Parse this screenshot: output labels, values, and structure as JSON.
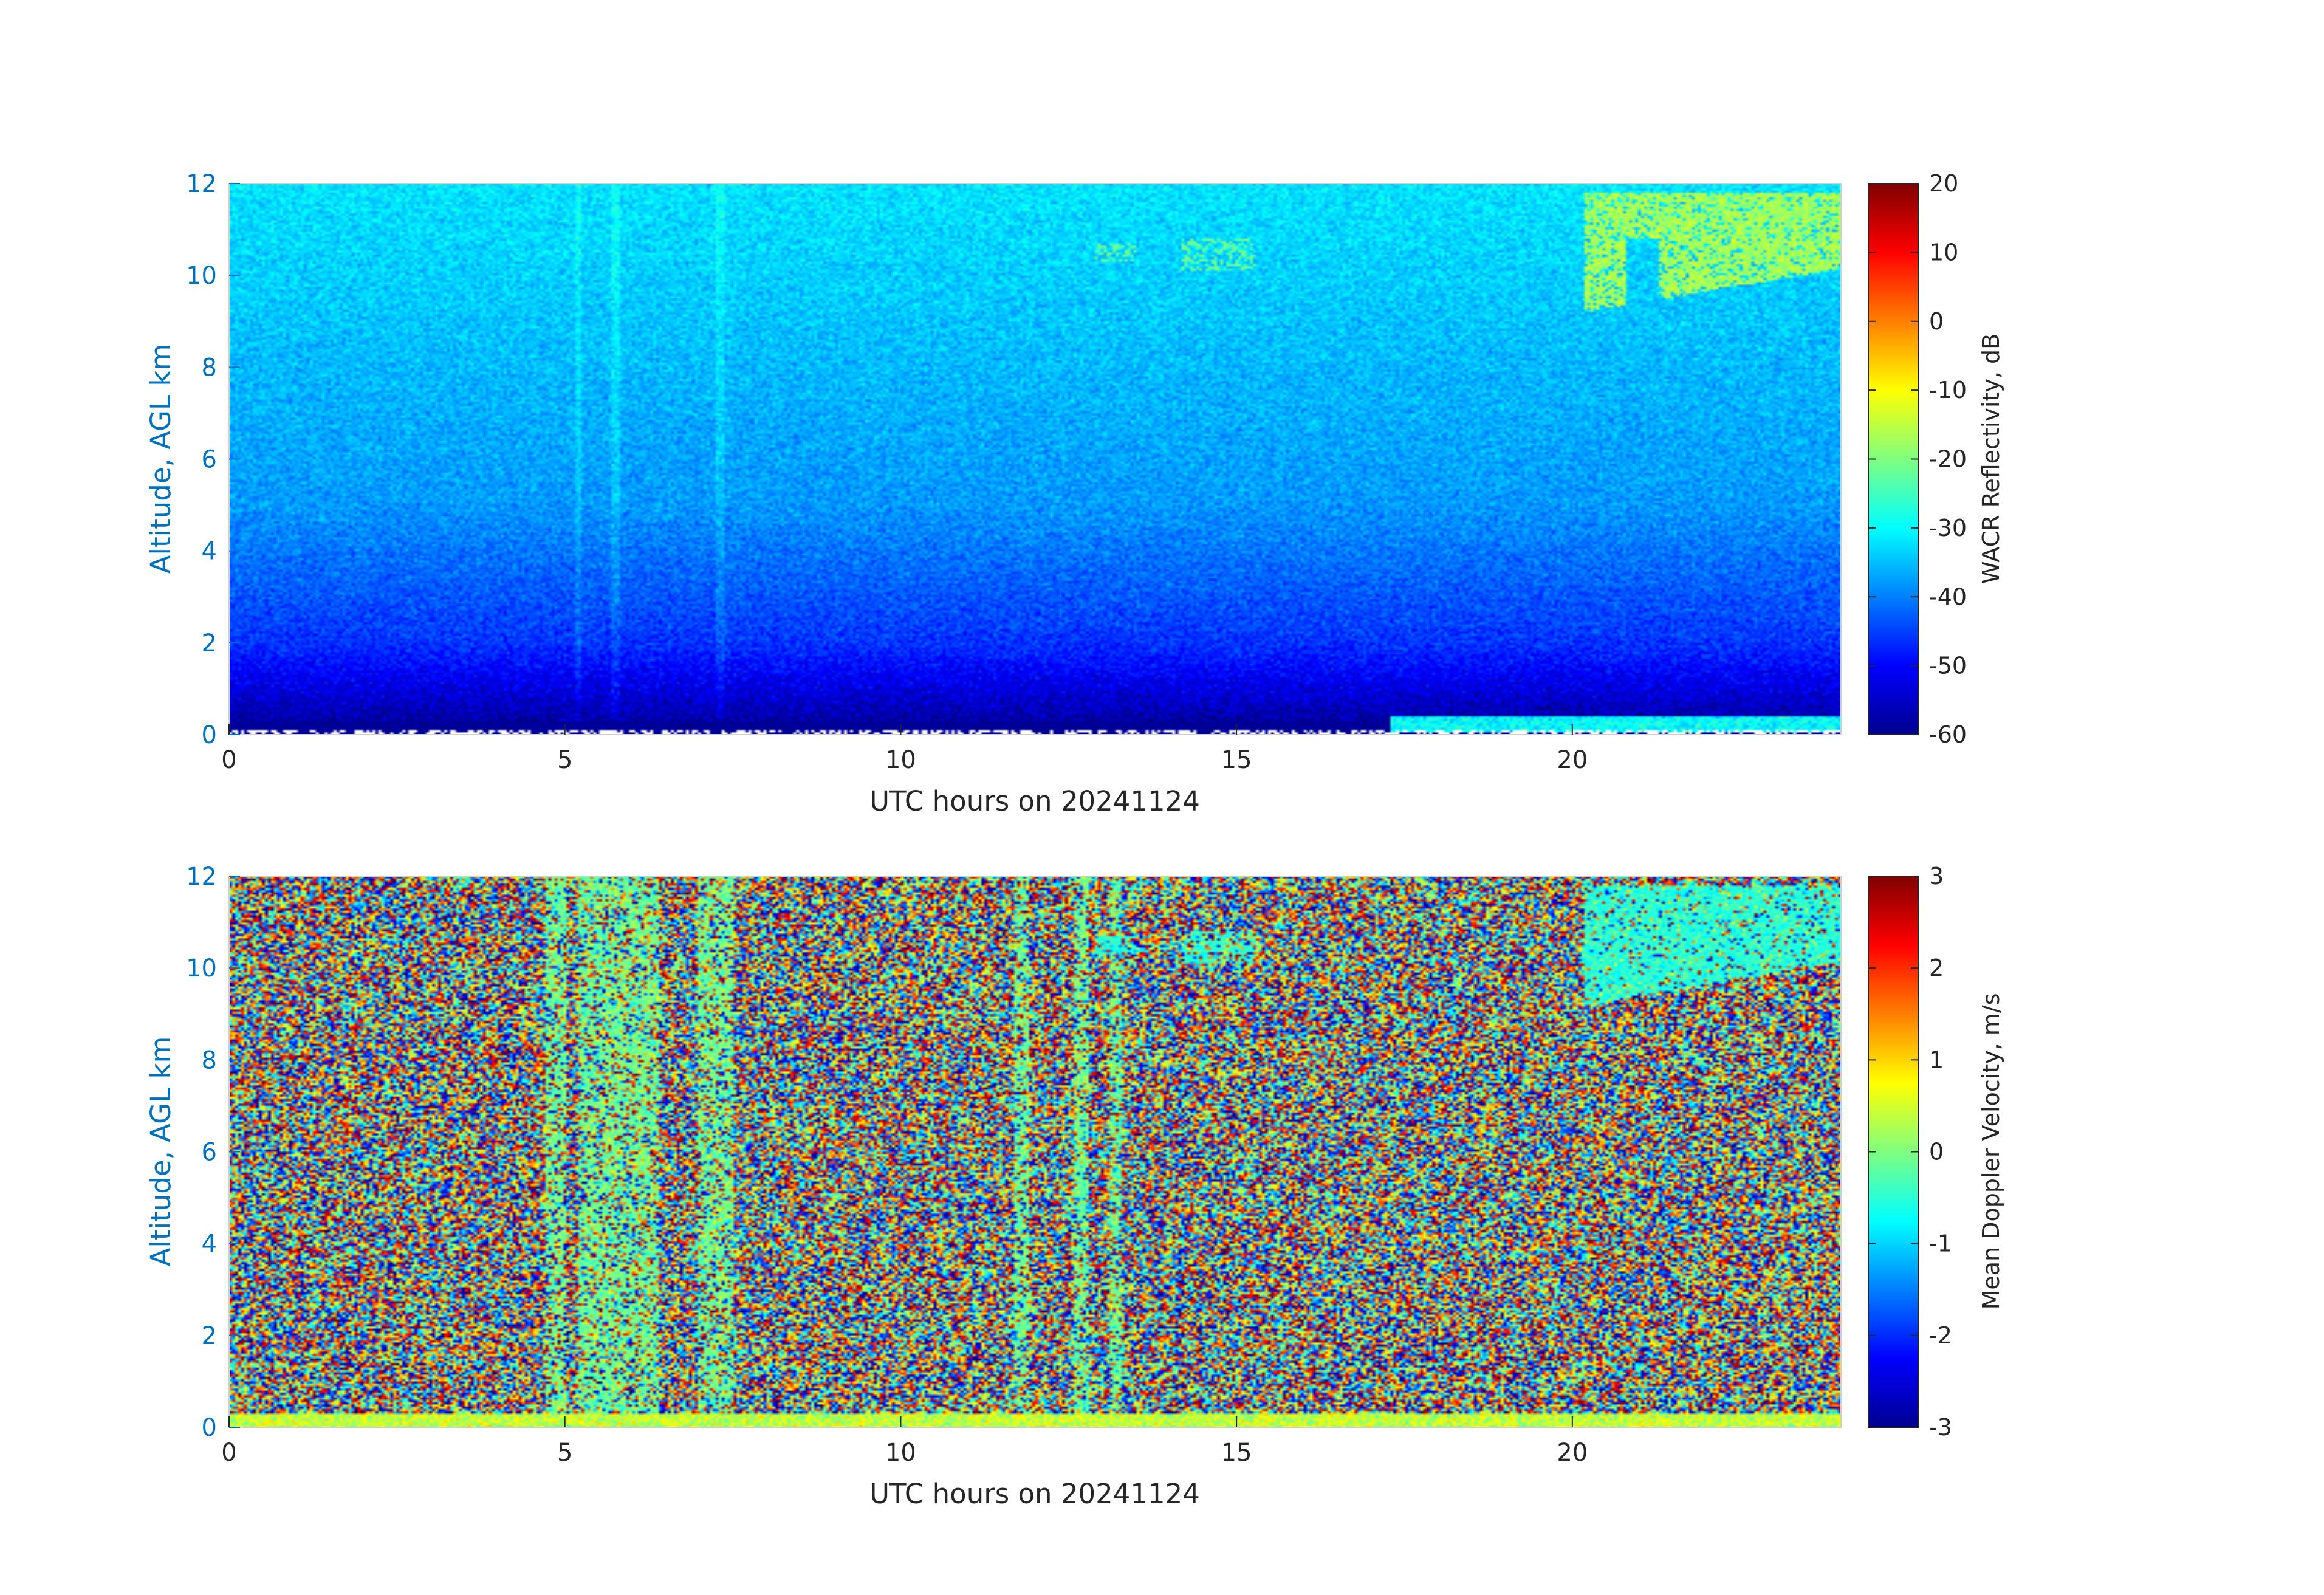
{
  "chart_data": [
    {
      "type": "heatmap",
      "title": "",
      "xlabel": "UTC hours on 20241124",
      "ylabel": "Altitude, AGL km",
      "xlim": [
        0,
        24
      ],
      "ylim": [
        0,
        12
      ],
      "xticks": [
        0,
        5,
        10,
        15,
        20
      ],
      "yticks": [
        0,
        2,
        4,
        6,
        8,
        10,
        12
      ],
      "colorbar": {
        "label": "WACR Reflectivity, dB",
        "range": [
          -60,
          20
        ],
        "ticks": [
          -60,
          -50,
          -40,
          -30,
          -20,
          -10,
          0,
          10,
          20
        ],
        "colormap": "jet"
      },
      "features": {
        "background_gradient_dB": [
          {
            "alt": 0.3,
            "value": -57
          },
          {
            "alt": 2,
            "value": -46
          },
          {
            "alt": 5,
            "value": -38
          },
          {
            "alt": 12,
            "value": -32
          }
        ],
        "upper_cloud_dB": {
          "x": [
            20.2,
            24
          ],
          "alt": [
            9.2,
            11.8
          ],
          "value": -17
        },
        "cirrus_patches_dB": [
          {
            "x": [
              12.9,
              13.5
            ],
            "alt": [
              10.3,
              10.7
            ]
          },
          {
            "x": [
              14.2,
              15.3
            ],
            "alt": [
              10.1,
              10.8
            ]
          }
        ],
        "vertical_streaks_hours": [
          5.2,
          5.75,
          7.3
        ],
        "near_surface_layer": {
          "x": [
            17.3,
            24
          ],
          "alt": [
            0.05,
            0.4
          ]
        }
      }
    },
    {
      "type": "heatmap",
      "title": "",
      "xlabel": "UTC hours on 20241124",
      "ylabel": "Altitude, AGL km",
      "xlim": [
        0,
        24
      ],
      "ylim": [
        0,
        12
      ],
      "xticks": [
        0,
        5,
        10,
        15,
        20
      ],
      "yticks": [
        0,
        2,
        4,
        6,
        8,
        10,
        12
      ],
      "colorbar": {
        "label": "Mean Doppler Velocity, m/s",
        "range": [
          -3,
          3
        ],
        "ticks": [
          -3,
          -2,
          -1,
          0,
          1,
          2,
          3
        ],
        "colormap": "jet"
      },
      "features": {
        "background": "random noise over full range",
        "coherent_bands_hours": [
          [
            4.7,
            5.0
          ],
          [
            5.2,
            6.4
          ],
          [
            7.0,
            7.5
          ],
          [
            11.7,
            11.9
          ],
          [
            12.6,
            12.8
          ],
          [
            13.1,
            13.3
          ]
        ],
        "band_velocity": -0.1,
        "upper_cloud_velocity": {
          "x": [
            20.2,
            24
          ],
          "alt": [
            9.2,
            11.8
          ],
          "value": -0.5
        },
        "cirrus_patches": [
          {
            "x": [
              12.9,
              13.5
            ],
            "alt": [
              10.3,
              10.7
            ]
          },
          {
            "x": [
              14.2,
              15.3
            ],
            "alt": [
              10.1,
              10.8
            ]
          }
        ],
        "near_surface_velocity": 0.4
      }
    }
  ]
}
